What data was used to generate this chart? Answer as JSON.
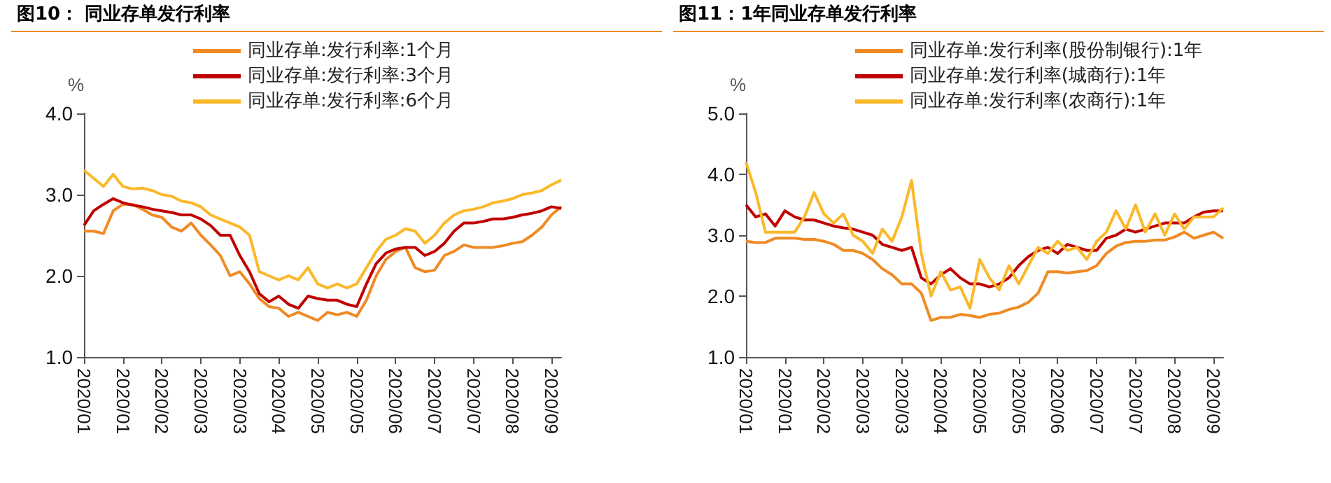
{
  "chart_data": [
    {
      "type": "line",
      "title": "图10： 同业存单发行利率",
      "ylabel": "%",
      "categories": [
        "2020/01",
        null,
        null,
        null,
        "2020/01",
        null,
        null,
        null,
        "2020/02",
        null,
        null,
        null,
        "2020/03",
        null,
        null,
        null,
        "2020/03",
        null,
        null,
        null,
        "2020/04",
        null,
        null,
        null,
        "2020/05",
        null,
        null,
        null,
        "2020/05",
        null,
        null,
        null,
        "2020/06",
        null,
        null,
        null,
        "2020/07",
        null,
        null,
        null,
        "2020/07",
        null,
        null,
        null,
        "2020/08",
        null,
        null,
        null,
        "2020/09",
        null
      ],
      "series": [
        {
          "name": "同业存单:发行利率:1个月",
          "color": "#f08a24",
          "values": [
            2.55,
            2.55,
            2.52,
            2.8,
            2.88,
            2.88,
            2.82,
            2.75,
            2.72,
            2.6,
            2.55,
            2.65,
            2.5,
            2.38,
            2.25,
            2.0,
            2.05,
            1.9,
            1.72,
            1.62,
            1.6,
            1.5,
            1.55,
            1.5,
            1.45,
            1.55,
            1.52,
            1.55,
            1.5,
            1.7,
            2.0,
            2.2,
            2.3,
            2.35,
            2.1,
            2.05,
            2.07,
            2.25,
            2.3,
            2.38,
            2.35,
            2.35,
            2.35,
            2.37,
            2.4,
            2.42,
            2.5,
            2.6,
            2.75,
            2.85
          ]
        },
        {
          "name": "同业存单:发行利率:3个月",
          "color": "#c00000",
          "values": [
            2.62,
            2.8,
            2.88,
            2.95,
            2.9,
            2.87,
            2.85,
            2.82,
            2.8,
            2.78,
            2.75,
            2.75,
            2.7,
            2.62,
            2.5,
            2.5,
            2.25,
            2.05,
            1.78,
            1.68,
            1.75,
            1.65,
            1.6,
            1.75,
            1.72,
            1.7,
            1.7,
            1.65,
            1.62,
            1.9,
            2.15,
            2.28,
            2.33,
            2.35,
            2.35,
            2.25,
            2.3,
            2.4,
            2.55,
            2.65,
            2.65,
            2.67,
            2.7,
            2.7,
            2.72,
            2.75,
            2.77,
            2.8,
            2.85,
            2.83
          ]
        },
        {
          "name": "同业存单:发行利率:6个月",
          "color": "#fbb829",
          "values": [
            3.3,
            3.2,
            3.1,
            3.25,
            3.1,
            3.07,
            3.08,
            3.05,
            3.0,
            2.98,
            2.92,
            2.9,
            2.85,
            2.75,
            2.7,
            2.65,
            2.6,
            2.5,
            2.05,
            2.0,
            1.95,
            2.0,
            1.95,
            2.1,
            1.9,
            1.85,
            1.9,
            1.85,
            1.9,
            2.1,
            2.3,
            2.45,
            2.5,
            2.58,
            2.55,
            2.4,
            2.5,
            2.65,
            2.75,
            2.8,
            2.82,
            2.85,
            2.9,
            2.92,
            2.95,
            3.0,
            3.02,
            3.05,
            3.12,
            3.18
          ]
        }
      ],
      "ylim": [
        1,
        4
      ],
      "yticks": [
        {
          "value": 1,
          "label": "1.0"
        },
        {
          "value": 2,
          "label": "2.0"
        },
        {
          "value": 3,
          "label": "3.0"
        },
        {
          "value": 4,
          "label": "4.0"
        }
      ],
      "grid": false,
      "legend": "top",
      "marker": "none",
      "line_style": "solid"
    },
    {
      "type": "line",
      "title": "图11：1年同业存单发行利率",
      "ylabel": "%",
      "categories": [
        "2020/01",
        null,
        null,
        null,
        "2020/01",
        null,
        null,
        null,
        "2020/02",
        null,
        null,
        null,
        "2020/03",
        null,
        null,
        null,
        "2020/03",
        null,
        null,
        null,
        "2020/04",
        null,
        null,
        null,
        "2020/05",
        null,
        null,
        null,
        "2020/05",
        null,
        null,
        null,
        "2020/06",
        null,
        null,
        null,
        "2020/07",
        null,
        null,
        null,
        "2020/07",
        null,
        null,
        null,
        "2020/08",
        null,
        null,
        null,
        "2020/09",
        null
      ],
      "series": [
        {
          "name": "同业存单:发行利率(股份制银行):1年",
          "color": "#f08a24",
          "values": [
            2.9,
            2.88,
            2.88,
            2.95,
            2.95,
            2.95,
            2.93,
            2.93,
            2.9,
            2.85,
            2.75,
            2.75,
            2.7,
            2.6,
            2.45,
            2.35,
            2.2,
            2.2,
            2.05,
            1.6,
            1.65,
            1.65,
            1.7,
            1.68,
            1.65,
            1.7,
            1.72,
            1.78,
            1.82,
            1.9,
            2.05,
            2.4,
            2.4,
            2.38,
            2.4,
            2.42,
            2.5,
            2.7,
            2.82,
            2.88,
            2.9,
            2.9,
            2.92,
            2.92,
            2.97,
            3.05,
            2.95,
            3.0,
            3.05,
            2.95
          ]
        },
        {
          "name": "同业存单:发行利率(城商行):1年",
          "color": "#c00000",
          "values": [
            3.5,
            3.3,
            3.35,
            3.15,
            3.4,
            3.3,
            3.25,
            3.25,
            3.2,
            3.15,
            3.12,
            3.1,
            3.05,
            3.0,
            2.85,
            2.8,
            2.75,
            2.8,
            2.3,
            2.2,
            2.35,
            2.45,
            2.3,
            2.2,
            2.2,
            2.15,
            2.2,
            2.3,
            2.5,
            2.65,
            2.75,
            2.8,
            2.7,
            2.85,
            2.8,
            2.75,
            2.75,
            2.95,
            3.0,
            3.1,
            3.05,
            3.1,
            3.15,
            3.2,
            3.2,
            3.2,
            3.3,
            3.38,
            3.4,
            3.4
          ]
        },
        {
          "name": "同业存单:发行利率(农商行):1年",
          "color": "#fbb829",
          "values": [
            4.2,
            3.7,
            3.05,
            3.05,
            3.05,
            3.05,
            3.3,
            3.7,
            3.35,
            3.2,
            3.35,
            3.0,
            2.9,
            2.7,
            3.1,
            2.9,
            3.3,
            3.9,
            2.7,
            2.0,
            2.4,
            2.1,
            2.15,
            1.8,
            2.6,
            2.3,
            2.1,
            2.5,
            2.2,
            2.5,
            2.8,
            2.7,
            2.9,
            2.75,
            2.8,
            2.6,
            2.9,
            3.05,
            3.4,
            3.1,
            3.5,
            3.05,
            3.35,
            3.0,
            3.35,
            3.1,
            3.3,
            3.3,
            3.3,
            3.45
          ]
        }
      ],
      "ylim": [
        1,
        5
      ],
      "yticks": [
        {
          "value": 1,
          "label": "1.0"
        },
        {
          "value": 2,
          "label": "2.0"
        },
        {
          "value": 3,
          "label": "3.0"
        },
        {
          "value": 4,
          "label": "4.0"
        },
        {
          "value": 5,
          "label": "5.0"
        }
      ],
      "grid": false,
      "legend": "top",
      "marker": "none",
      "line_style": "solid"
    }
  ]
}
